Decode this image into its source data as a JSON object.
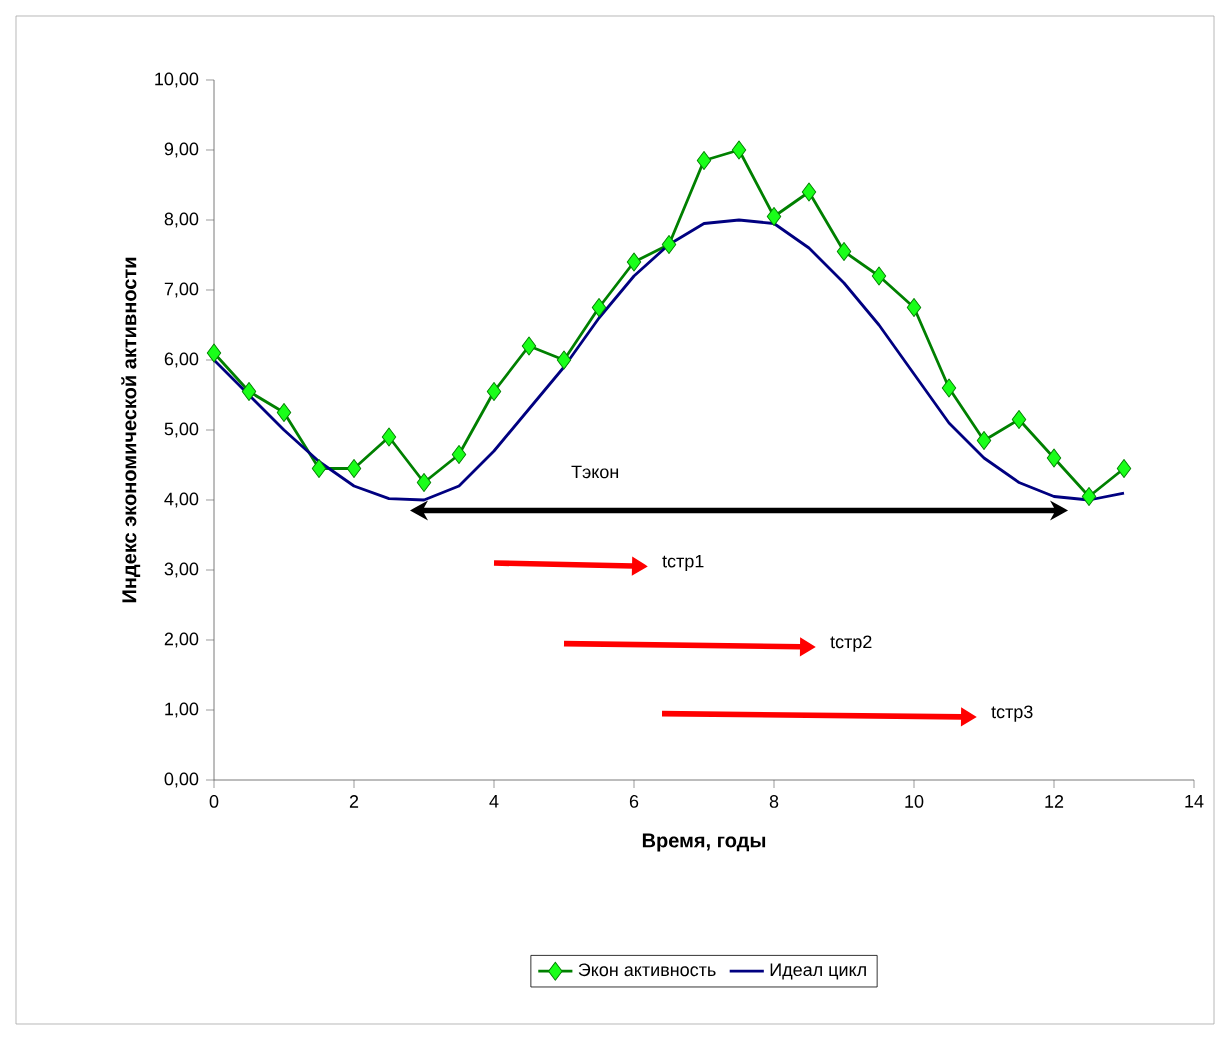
{
  "chart_data": {
    "type": "line",
    "xlabel": "Время, годы",
    "ylabel": "Индекс экономической активности",
    "xlim": [
      0,
      14
    ],
    "xticks": [
      0,
      2,
      4,
      6,
      8,
      10,
      12,
      14
    ],
    "ylim": [
      0,
      10
    ],
    "yticks": [
      {
        "value": 0,
        "label": "0,00"
      },
      {
        "value": 1,
        "label": "1,00"
      },
      {
        "value": 2,
        "label": "2,00"
      },
      {
        "value": 3,
        "label": "3,00"
      },
      {
        "value": 4,
        "label": "4,00"
      },
      {
        "value": 5,
        "label": "5,00"
      },
      {
        "value": 6,
        "label": "6,00"
      },
      {
        "value": 7,
        "label": "7,00"
      },
      {
        "value": 8,
        "label": "8,00"
      },
      {
        "value": 9,
        "label": "9,00"
      },
      {
        "value": 10,
        "label": "10,00"
      }
    ],
    "legend": "bottom",
    "series": [
      {
        "name": "Экон активность",
        "color": "#008000",
        "marker": "diamond",
        "x": [
          0,
          0.5,
          1,
          1.5,
          2,
          2.5,
          3,
          3.5,
          4,
          4.5,
          5,
          5.5,
          6,
          6.5,
          7,
          7.5,
          8,
          8.5,
          9,
          9.5,
          10,
          10.5,
          11,
          11.5,
          12,
          12.5,
          13
        ],
        "values": [
          6.1,
          5.55,
          5.25,
          4.45,
          4.45,
          4.9,
          4.25,
          4.65,
          5.55,
          6.2,
          6.0,
          6.75,
          7.4,
          7.65,
          8.85,
          9.0,
          8.05,
          8.4,
          7.55,
          7.2,
          6.75,
          5.6,
          4.85,
          5.15,
          4.6,
          4.05,
          4.45
        ]
      },
      {
        "name": "Идеал цикл",
        "color": "#000080",
        "marker": "none",
        "x": [
          0,
          0.5,
          1,
          1.5,
          2,
          2.5,
          3,
          3.5,
          4,
          4.5,
          5,
          5.5,
          6,
          6.5,
          7,
          7.5,
          8,
          8.5,
          9,
          9.5,
          10,
          10.5,
          11,
          11.5,
          12,
          12.5,
          13
        ],
        "values": [
          6.0,
          5.5,
          5.0,
          4.55,
          4.2,
          4.02,
          4.0,
          4.2,
          4.7,
          5.3,
          5.9,
          6.6,
          7.2,
          7.65,
          7.95,
          8.0,
          7.95,
          7.6,
          7.1,
          6.5,
          5.8,
          5.1,
          4.6,
          4.25,
          4.05,
          4.0,
          4.1
        ]
      }
    ],
    "annotations": [
      "Тэкон",
      "tстр1",
      "tстр2",
      "tстр3"
    ]
  }
}
